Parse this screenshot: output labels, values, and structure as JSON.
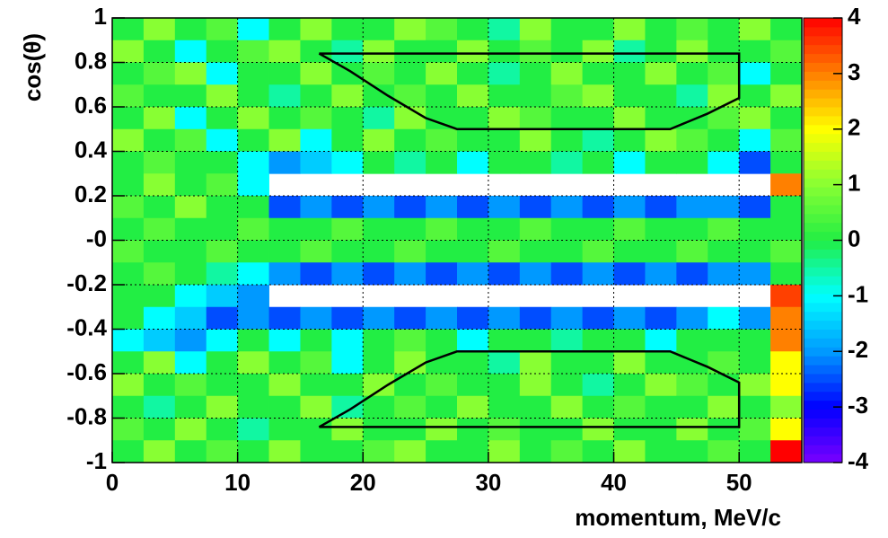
{
  "chart_data": {
    "type": "heatmap",
    "x_label": "momentum, MeV/c",
    "y_label": "cos(θ)",
    "xlim": [
      0,
      55
    ],
    "ylim": [
      -1,
      1
    ],
    "xticks": [
      0,
      10,
      20,
      30,
      40,
      50
    ],
    "yticks": [
      1,
      0.8,
      0.6,
      0.4,
      0.2,
      {
        "value": 0,
        "label": "-0"
      },
      -0.2,
      -0.4,
      -0.6,
      -0.8,
      -1
    ],
    "grid": true,
    "xbins": [
      0,
      2.5,
      5,
      7.5,
      10,
      12.5,
      15,
      17.5,
      20,
      22.5,
      25,
      27.5,
      30,
      32.5,
      35,
      37.5,
      40,
      42.5,
      45,
      47.5,
      50,
      52.5,
      55
    ],
    "ybins": [
      1,
      0.9,
      0.8,
      0.7,
      0.6,
      0.5,
      0.4,
      0.3,
      0.2,
      0.1,
      0,
      -0.1,
      -0.2,
      -0.3,
      -0.4,
      -0.5,
      -0.6,
      -0.7,
      -0.8,
      -0.9,
      -1
    ],
    "z": [
      [
        0,
        1,
        0,
        0.5,
        -1,
        0,
        1,
        0,
        0,
        1,
        0.5,
        0,
        -0.5,
        1,
        0,
        0,
        1,
        0,
        0.5,
        0,
        1,
        0
      ],
      [
        1,
        0,
        -1,
        0,
        0.5,
        1,
        0,
        -0.5,
        1,
        0,
        0,
        1,
        0,
        0.5,
        0,
        1,
        -0.5,
        0,
        1,
        0,
        0,
        0.5
      ],
      [
        0,
        0.5,
        1,
        -1,
        0,
        0,
        1,
        0,
        0.5,
        0,
        1,
        0,
        -0.5,
        0,
        1,
        0,
        0,
        1,
        0,
        0.5,
        -1,
        0
      ],
      [
        0.5,
        0,
        0,
        1,
        0,
        -0.5,
        0,
        1,
        0,
        0.5,
        0,
        1,
        0,
        0,
        0.5,
        1,
        0,
        0,
        -0.5,
        1,
        0,
        1
      ],
      [
        0,
        1,
        -1,
        0,
        1,
        0,
        0.5,
        0,
        -0.5,
        1,
        0,
        0,
        1,
        0.5,
        0,
        0,
        1,
        0,
        0,
        0.5,
        1,
        0
      ],
      [
        1,
        0,
        0.5,
        -1,
        0,
        1,
        -1,
        0,
        1,
        0,
        0.5,
        0,
        0,
        1,
        0,
        -0.5,
        0,
        1,
        0.5,
        0,
        -1,
        0.5
      ],
      [
        0,
        0.5,
        0,
        0,
        -1,
        -2,
        -1.5,
        -1,
        0,
        -0.5,
        0,
        -1,
        0,
        0,
        -0.5,
        0,
        -1,
        0,
        0,
        -1,
        -2.5,
        0
      ],
      [
        0,
        1,
        0,
        0.5,
        -1,
        null,
        null,
        null,
        null,
        null,
        null,
        null,
        null,
        null,
        null,
        null,
        null,
        null,
        null,
        null,
        null,
        3
      ],
      [
        0.5,
        0,
        1,
        0,
        0,
        -2.5,
        -2,
        -2.5,
        -2,
        -2.5,
        -2,
        -2.5,
        -2,
        -2.5,
        -2,
        -2.5,
        -2,
        -2.5,
        -2,
        -2,
        -2.5,
        0
      ],
      [
        0,
        0.5,
        0,
        0,
        0.5,
        0,
        0,
        0.5,
        0,
        0,
        0.5,
        0,
        0,
        0.5,
        0,
        0,
        0.5,
        0,
        0,
        0.5,
        0,
        0
      ],
      [
        0.5,
        0,
        0,
        0.5,
        0,
        0,
        0.5,
        0,
        0,
        0.5,
        0,
        0,
        0.5,
        0,
        0,
        0.5,
        0,
        0,
        0.5,
        0,
        0,
        0.5
      ],
      [
        0,
        0.5,
        0,
        -0.5,
        -1,
        -2,
        -2.5,
        -2,
        -2.5,
        -2,
        -2.5,
        -2,
        -2.5,
        -2,
        -2.5,
        -2,
        -2.5,
        -2,
        -2.5,
        -2,
        -2,
        0
      ],
      [
        0,
        0,
        -1,
        -1.5,
        -2,
        null,
        null,
        null,
        null,
        null,
        null,
        null,
        null,
        null,
        null,
        null,
        null,
        null,
        null,
        null,
        null,
        3.5
      ],
      [
        0,
        -1,
        -1.5,
        -2.5,
        -2,
        -2.5,
        -2,
        -2.5,
        -2,
        -2.5,
        -2,
        -2.5,
        -2,
        -2.5,
        -2,
        -2.5,
        -2,
        -2.5,
        -2,
        -1,
        -2,
        3
      ],
      [
        -1,
        -1.5,
        -2,
        -1,
        0,
        -1,
        0,
        -1,
        0,
        0.5,
        0,
        -1,
        0,
        0,
        -0.5,
        0,
        0,
        -1,
        0,
        0,
        0,
        3
      ],
      [
        0,
        1,
        -1,
        0,
        1,
        0,
        0.5,
        -1,
        0,
        1,
        0,
        0,
        -0.5,
        1,
        0,
        0,
        1,
        0,
        0,
        0.5,
        0,
        2
      ],
      [
        1,
        0,
        0.5,
        0,
        0,
        1,
        0,
        0,
        1,
        0,
        0.5,
        0,
        0,
        1,
        0,
        -0.5,
        0,
        1,
        0.5,
        0,
        1,
        2
      ],
      [
        0,
        -0.5,
        0,
        1,
        0,
        0,
        1,
        -0.5,
        0,
        0.5,
        0,
        1,
        0,
        0,
        1,
        0,
        0.5,
        0,
        0,
        1,
        0,
        1
      ],
      [
        0.5,
        0,
        1,
        0,
        -0.5,
        0,
        0,
        1,
        0,
        0,
        1,
        0,
        0.5,
        0,
        0,
        1,
        0,
        0,
        1,
        0,
        0.5,
        2
      ],
      [
        0,
        1,
        0,
        0.5,
        0,
        1,
        0,
        0,
        0.5,
        1,
        0,
        0,
        1,
        0,
        0.5,
        0,
        1,
        0,
        0,
        0.5,
        0,
        4
      ]
    ],
    "zlim": [
      -4,
      4
    ],
    "zticks": [
      4,
      3,
      2,
      1,
      0,
      -1,
      -2,
      -3,
      -4
    ],
    "colorscale": [
      "#7a00ff",
      "#0000ff",
      "#0099ff",
      "#00ffff",
      "#22ee44",
      "#88ff33",
      "#ffff00",
      "#ff8000",
      "#ff0000"
    ],
    "region_color": "#000000",
    "regions": [
      {
        "x": [
          16.5,
          19,
          22,
          25,
          27.5,
          44.5,
          47.5,
          50,
          50,
          16.5
        ],
        "y": [
          0.84,
          0.76,
          0.65,
          0.55,
          0.5,
          0.5,
          0.57,
          0.64,
          0.84,
          0.84
        ]
      },
      {
        "x": [
          16.5,
          19,
          22,
          25,
          27.5,
          44.5,
          47.5,
          50,
          50,
          16.5
        ],
        "y": [
          -0.84,
          -0.76,
          -0.65,
          -0.55,
          -0.5,
          -0.5,
          -0.57,
          -0.64,
          -0.84,
          -0.84
        ]
      }
    ]
  }
}
